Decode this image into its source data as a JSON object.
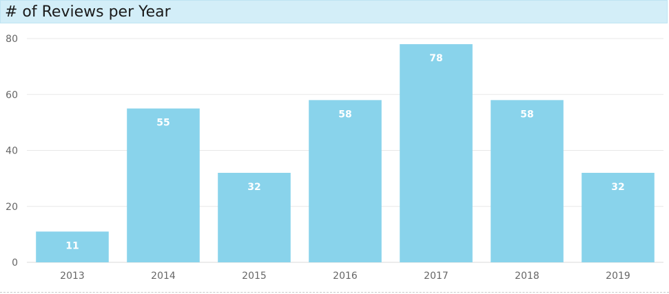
{
  "chart_data": {
    "type": "bar",
    "title": "# of Reviews per Year",
    "xlabel": "",
    "ylabel": "",
    "categories": [
      "2013",
      "2014",
      "2015",
      "2016",
      "2017",
      "2018",
      "2019"
    ],
    "values": [
      11,
      55,
      32,
      58,
      78,
      58,
      32
    ],
    "ylim": [
      0,
      80
    ],
    "yticks": [
      0,
      20,
      40,
      60,
      80
    ],
    "grid": true,
    "legend": "none",
    "bar_color": "#89d3eb",
    "title_bar_color": "#d3eef8",
    "data_label_color": "#ffffff"
  }
}
